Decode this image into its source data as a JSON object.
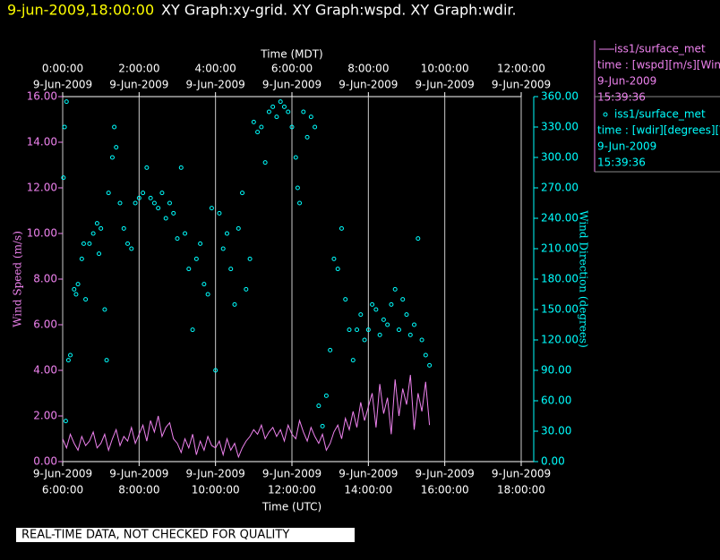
{
  "header": {
    "datetime": "9-jun-2009,18:00:00",
    "graphs": "XY Graph:xy-grid.  XY Graph:wspd.  XY Graph:wdir."
  },
  "footer": "REAL-TIME DATA, NOT CHECKED FOR QUALITY",
  "chart_data": {
    "type": "line-scatter",
    "xlabel": "Time (UTC)",
    "x2label": "Time (MDT)",
    "ylabel": "Wind Speed (m/s)",
    "y2label": "Wind Direction (degrees)",
    "xlim": [
      6,
      18
    ],
    "xticks": [
      {
        "value": 6,
        "label": "6:00:00"
      },
      {
        "value": 8,
        "label": "8:00:00"
      },
      {
        "value": 10,
        "label": "10:00:00"
      },
      {
        "value": 12,
        "label": "12:00:00"
      },
      {
        "value": 14,
        "label": "14:00:00"
      },
      {
        "value": 16,
        "label": "16:00:00"
      },
      {
        "value": 18,
        "label": "18:00:00"
      }
    ],
    "xtick_dates": [
      "9-Jun-2009",
      "9-Jun-2009",
      "9-Jun-2009",
      "9-Jun-2009",
      "9-Jun-2009",
      "9-Jun-2009",
      "9-Jun-2009"
    ],
    "x2lim": [
      0,
      12
    ],
    "x2ticks": [
      {
        "value": 0,
        "label": "0:00:00"
      },
      {
        "value": 2,
        "label": "2:00:00"
      },
      {
        "value": 4,
        "label": "4:00:00"
      },
      {
        "value": 6,
        "label": "6:00:00"
      },
      {
        "value": 8,
        "label": "8:00:00"
      },
      {
        "value": 10,
        "label": "10:00:00"
      },
      {
        "value": 12,
        "label": "12:00:00"
      }
    ],
    "x2tick_dates": [
      "9-Jun-2009",
      "9-Jun-2009",
      "9-Jun-2009",
      "9-Jun-2009",
      "9-Jun-2009",
      "9-Jun-2009",
      "9-Jun-2009"
    ],
    "ylim": [
      0,
      16
    ],
    "yticks": [
      {
        "value": 0,
        "label": "0.00"
      },
      {
        "value": 2,
        "label": "2.00"
      },
      {
        "value": 4,
        "label": "4.00"
      },
      {
        "value": 6,
        "label": "6.00"
      },
      {
        "value": 8,
        "label": "8.00"
      },
      {
        "value": 10,
        "label": "10.00"
      },
      {
        "value": 12,
        "label": "12.00"
      },
      {
        "value": 14,
        "label": "14.00"
      },
      {
        "value": 16,
        "label": "16.00"
      }
    ],
    "y2lim": [
      0,
      360
    ],
    "y2ticks": [
      {
        "value": 0,
        "label": "0.00"
      },
      {
        "value": 30,
        "label": "30.00"
      },
      {
        "value": 60,
        "label": "60.00"
      },
      {
        "value": 90,
        "label": "90.00"
      },
      {
        "value": 120,
        "label": "120.00"
      },
      {
        "value": 150,
        "label": "150.00"
      },
      {
        "value": 180,
        "label": "180.00"
      },
      {
        "value": 210,
        "label": "210.00"
      },
      {
        "value": 240,
        "label": "240.00"
      },
      {
        "value": 270,
        "label": "270.00"
      },
      {
        "value": 300,
        "label": "300.00"
      },
      {
        "value": 330,
        "label": "330.00"
      },
      {
        "value": 360,
        "label": "360.00"
      }
    ],
    "grid": true,
    "series": [
      {
        "name": "iss1/surface_met",
        "field": "time : [wspd][m/s][Wind",
        "date": "9-Jun-2009",
        "time": "15:39:36",
        "color": "#ee82ee",
        "marker": "line",
        "x": [
          6.0,
          6.1,
          6.2,
          6.3,
          6.4,
          6.5,
          6.6,
          6.7,
          6.8,
          6.9,
          7.0,
          7.1,
          7.2,
          7.3,
          7.4,
          7.5,
          7.6,
          7.7,
          7.8,
          7.9,
          8.0,
          8.1,
          8.2,
          8.3,
          8.4,
          8.5,
          8.6,
          8.7,
          8.8,
          8.9,
          9.0,
          9.1,
          9.2,
          9.3,
          9.4,
          9.5,
          9.6,
          9.7,
          9.8,
          9.9,
          10.0,
          10.1,
          10.2,
          10.3,
          10.4,
          10.5,
          10.6,
          10.7,
          10.8,
          10.9,
          11.0,
          11.1,
          11.2,
          11.3,
          11.4,
          11.5,
          11.6,
          11.7,
          11.8,
          11.9,
          12.0,
          12.1,
          12.2,
          12.3,
          12.4,
          12.5,
          12.6,
          12.7,
          12.8,
          12.9,
          13.0,
          13.1,
          13.2,
          13.3,
          13.4,
          13.5,
          13.6,
          13.7,
          13.8,
          13.9,
          14.0,
          14.1,
          14.2,
          14.3,
          14.4,
          14.5,
          14.6,
          14.7,
          14.8,
          14.9,
          15.0,
          15.1,
          15.2,
          15.3,
          15.4,
          15.5,
          15.6
        ],
        "values": [
          1.0,
          0.6,
          1.2,
          0.8,
          0.5,
          1.1,
          0.7,
          0.9,
          1.3,
          0.6,
          0.8,
          1.2,
          0.5,
          1.0,
          1.4,
          0.7,
          1.1,
          0.9,
          1.5,
          0.8,
          1.2,
          1.6,
          0.9,
          1.8,
          1.3,
          2.0,
          1.1,
          1.5,
          1.7,
          1.0,
          0.8,
          0.4,
          1.0,
          0.6,
          1.2,
          0.3,
          0.9,
          0.5,
          1.1,
          0.7,
          0.6,
          0.9,
          0.3,
          1.0,
          0.5,
          0.8,
          0.2,
          0.6,
          0.9,
          1.1,
          1.4,
          1.2,
          1.6,
          1.0,
          1.3,
          1.5,
          1.1,
          1.4,
          0.9,
          1.6,
          1.2,
          1.0,
          1.8,
          1.3,
          0.9,
          1.5,
          1.1,
          0.8,
          1.2,
          0.5,
          0.8,
          1.3,
          1.6,
          1.0,
          1.9,
          1.4,
          2.2,
          1.5,
          2.6,
          1.8,
          2.4,
          3.0,
          1.5,
          3.4,
          2.1,
          2.8,
          1.2,
          3.6,
          2.0,
          3.2,
          2.5,
          3.8,
          1.4,
          3.0,
          2.2,
          3.5,
          1.6
        ]
      },
      {
        "name": "iss1/surface_met",
        "field": "time : [wdir][degrees][V",
        "date": "9-Jun-2009",
        "time": "15:39:36",
        "color": "#00ffff",
        "marker": "circle",
        "axis": "y2",
        "x": [
          6.02,
          6.05,
          6.08,
          6.1,
          6.15,
          6.2,
          6.3,
          6.35,
          6.4,
          6.5,
          6.55,
          6.6,
          6.7,
          6.8,
          6.9,
          6.95,
          7.0,
          7.1,
          7.15,
          7.2,
          7.3,
          7.35,
          7.4,
          7.5,
          7.6,
          7.7,
          7.8,
          7.9,
          8.0,
          8.1,
          8.2,
          8.3,
          8.4,
          8.5,
          8.6,
          8.7,
          8.8,
          8.9,
          9.0,
          9.1,
          9.2,
          9.3,
          9.4,
          9.5,
          9.6,
          9.7,
          9.8,
          9.9,
          10.0,
          10.1,
          10.2,
          10.3,
          10.4,
          10.5,
          10.6,
          10.7,
          10.8,
          10.9,
          11.0,
          11.1,
          11.2,
          11.3,
          11.4,
          11.5,
          11.6,
          11.7,
          11.8,
          11.9,
          12.0,
          12.1,
          12.15,
          12.2,
          12.3,
          12.4,
          12.5,
          12.6,
          12.7,
          12.8,
          12.9,
          13.0,
          13.1,
          13.2,
          13.3,
          13.4,
          13.5,
          13.6,
          13.7,
          13.8,
          13.9,
          14.0,
          14.1,
          14.2,
          14.3,
          14.4,
          14.5,
          14.6,
          14.7,
          14.8,
          14.9,
          15.0,
          15.1,
          15.2,
          15.3,
          15.4,
          15.5,
          15.6
        ],
        "values": [
          280,
          330,
          40,
          355,
          100,
          105,
          170,
          165,
          175,
          200,
          215,
          160,
          215,
          225,
          235,
          205,
          230,
          150,
          100,
          265,
          300,
          330,
          310,
          255,
          230,
          215,
          210,
          255,
          260,
          265,
          290,
          260,
          255,
          250,
          265,
          240,
          255,
          245,
          220,
          290,
          225,
          190,
          130,
          200,
          215,
          175,
          165,
          250,
          90,
          245,
          210,
          225,
          190,
          155,
          230,
          265,
          170,
          200,
          335,
          325,
          330,
          295,
          345,
          350,
          340,
          355,
          350,
          345,
          330,
          300,
          270,
          255,
          345,
          320,
          340,
          330,
          55,
          35,
          65,
          110,
          200,
          190,
          230,
          160,
          130,
          100,
          130,
          145,
          120,
          130,
          155,
          150,
          125,
          140,
          135,
          155,
          170,
          130,
          160,
          145,
          125,
          135,
          220,
          120,
          105,
          95
        ]
      }
    ]
  }
}
